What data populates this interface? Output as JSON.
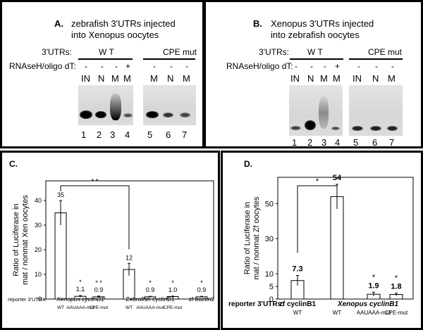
{
  "panel_a": {
    "letter": "A.",
    "title_line1": "zebrafish 3'UTRs injected",
    "title_line2": "into Xenopus oocytes",
    "row_3utrs": "3'UTRs:",
    "row_rnase": "RNAseH/oligo dT:",
    "wt": "W T",
    "cpe": "CPE mut",
    "signs": [
      "-",
      "-",
      "-",
      "+",
      "-",
      "-",
      "-"
    ],
    "lanes": [
      "IN",
      "N",
      "M",
      "M",
      "M",
      "N",
      "M"
    ],
    "numbers": [
      "1",
      "2",
      "3",
      "4",
      "5",
      "6",
      "7"
    ]
  },
  "panel_b": {
    "letter": "B.",
    "title_line1": "Xenopus 3'UTRs injected",
    "title_line2": "into zebrafish oocytes",
    "row_3utrs": "3'UTRs:",
    "row_rnase": "RNAseH/oligo dT:",
    "wt": "W T",
    "cpe": "CPE mut",
    "signs": [
      "-",
      "-",
      "-",
      "+",
      "-",
      "-",
      "-"
    ],
    "lanes": [
      "IN",
      "N",
      "M",
      "M",
      "IN",
      "N",
      "M"
    ],
    "numbers": [
      "1",
      "2",
      "3",
      "4",
      "5",
      "6",
      "7"
    ]
  },
  "panel_c": {
    "letter": "C.",
    "ylabel_line1": "Ratio of Luciferase in",
    "ylabel_line2": "mat / nonmat Xen oocytes",
    "reporter_label": "reporter 3'UTRs:",
    "group_labels": [
      "Xenopus cyclinB1",
      "Zebrafish cyclinB1",
      "zf bactin2"
    ],
    "sig_bracket": "* *",
    "chart_data": {
      "type": "bar",
      "categories": [
        "WT",
        "AAUAAA-mut",
        "CPE-mut",
        "WT",
        "AAUAAA-mut",
        "CPE-mut",
        ""
      ],
      "values": [
        35,
        1.1,
        0.9,
        12,
        0.9,
        1.0,
        0.9
      ],
      "errors": [
        5,
        0.3,
        0.3,
        2.5,
        0.2,
        0.2,
        0.2
      ],
      "value_labels": [
        "35",
        "1.1",
        "0.9",
        "12",
        "0.9",
        "1.0",
        "0.9"
      ],
      "stars": [
        "",
        "*",
        "* *",
        "",
        "*",
        "*",
        "*"
      ],
      "yticks": [
        0,
        10,
        20,
        30,
        40
      ],
      "ylim": [
        0,
        48
      ]
    }
  },
  "panel_d": {
    "letter": "D.",
    "ylabel_line1": "Ratio of Luciferase in",
    "ylabel_line2": "mat / nonmat Zf oocytes",
    "reporter_label": "reporter 3'UTRs:",
    "group_labels": [
      "zf cyclinB1",
      "Xenopus cyclinB1"
    ],
    "sig_bracket": "*",
    "chart_data": {
      "type": "bar",
      "categories": [
        "WT",
        "WT",
        "AAUAAA-mut",
        "CPE-mut"
      ],
      "values": [
        7.3,
        54,
        1.9,
        1.8
      ],
      "errors": [
        2,
        7,
        0.8,
        0.5
      ],
      "value_labels": [
        "7.3",
        "54",
        "1.9",
        "1.8"
      ],
      "stars": [
        "",
        "",
        "*",
        "*"
      ],
      "yticks": [
        0,
        5,
        10,
        30,
        50
      ],
      "ylim": [
        0,
        65
      ]
    }
  }
}
